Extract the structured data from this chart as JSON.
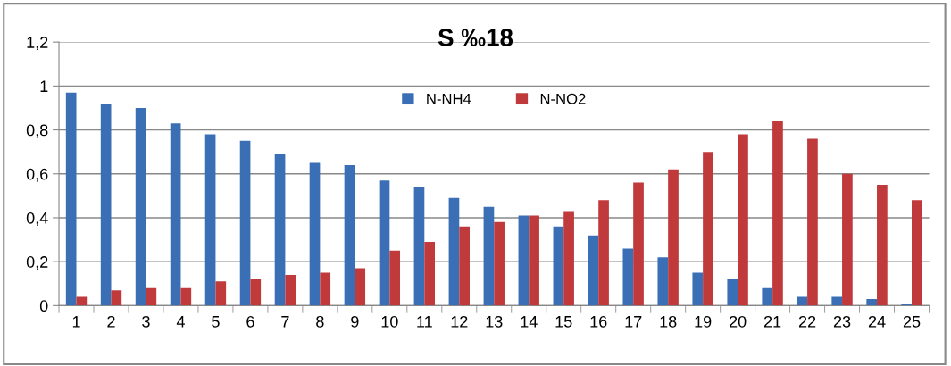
{
  "chart_data": {
    "type": "bar",
    "title": "S ‰18",
    "categories": [
      "1",
      "2",
      "3",
      "4",
      "5",
      "6",
      "7",
      "8",
      "9",
      "10",
      "11",
      "12",
      "13",
      "14",
      "15",
      "16",
      "17",
      "18",
      "19",
      "20",
      "21",
      "22",
      "23",
      "24",
      "25"
    ],
    "series": [
      {
        "name": "N-NH4",
        "color": "#3a6fb5",
        "values": [
          0.97,
          0.92,
          0.9,
          0.83,
          0.78,
          0.75,
          0.69,
          0.65,
          0.64,
          0.57,
          0.54,
          0.49,
          0.45,
          0.41,
          0.36,
          0.32,
          0.26,
          0.22,
          0.15,
          0.12,
          0.08,
          0.04,
          0.04,
          0.03,
          0.01
        ]
      },
      {
        "name": "N-NO2",
        "color": "#c0393b",
        "values": [
          0.04,
          0.07,
          0.08,
          0.08,
          0.11,
          0.12,
          0.14,
          0.15,
          0.17,
          0.25,
          0.29,
          0.36,
          0.38,
          0.41,
          0.43,
          0.48,
          0.56,
          0.62,
          0.7,
          0.78,
          0.84,
          0.76,
          0.6,
          0.55,
          0.48
        ]
      }
    ],
    "ylim": [
      0,
      1.2
    ],
    "yticks": [
      0,
      {
        "value": 0.2,
        "label": "0,2"
      },
      {
        "value": 0.4,
        "label": "0,4"
      },
      {
        "value": 0.6,
        "label": "0,6"
      },
      {
        "value": 0.8,
        "label": "0,8"
      },
      1,
      {
        "value": 1.2,
        "label": "1,2"
      }
    ],
    "grid": "y",
    "legend": "top"
  }
}
